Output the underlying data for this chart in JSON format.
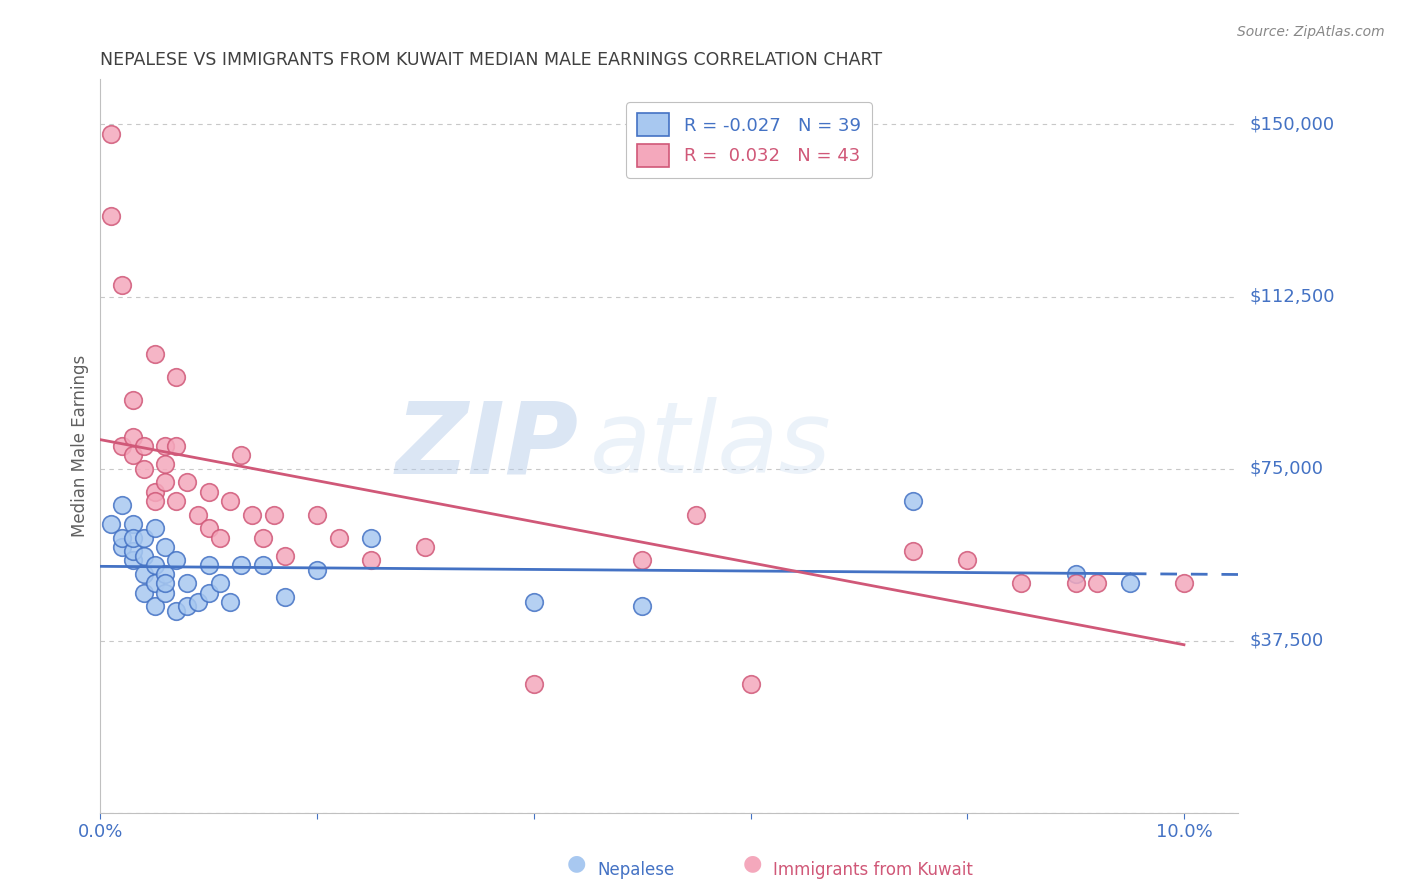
{
  "title": "NEPALESE VS IMMIGRANTS FROM KUWAIT MEDIAN MALE EARNINGS CORRELATION CHART",
  "source": "Source: ZipAtlas.com",
  "ylabel": "Median Male Earnings",
  "xlim": [
    0.0,
    0.105
  ],
  "ylim": [
    0,
    160000
  ],
  "yticks": [
    0,
    37500,
    75000,
    112500,
    150000
  ],
  "ytick_labels": [
    "",
    "$37,500",
    "$75,000",
    "$112,500",
    "$150,000"
  ],
  "xticks": [
    0.0,
    0.02,
    0.04,
    0.06,
    0.08,
    0.1
  ],
  "xtick_labels": [
    "0.0%",
    "",
    "",
    "",
    "",
    "10.0%"
  ],
  "legend_r1": "R = -0.027",
  "legend_n1": "N = 39",
  "legend_r2": "R =  0.032",
  "legend_n2": "N = 43",
  "series1_label": "Nepalese",
  "series2_label": "Immigrants from Kuwait",
  "series1_color": "#a8c8f0",
  "series2_color": "#f4a8bc",
  "trend1_color": "#4472c4",
  "trend2_color": "#d05878",
  "title_color": "#404040",
  "axis_label_color": "#4472c4",
  "background_color": "#ffffff",
  "watermark_zip": "ZIP",
  "watermark_atlas": "atlas",
  "nepalese_x": [
    0.001,
    0.002,
    0.002,
    0.002,
    0.003,
    0.003,
    0.003,
    0.003,
    0.004,
    0.004,
    0.004,
    0.004,
    0.005,
    0.005,
    0.005,
    0.005,
    0.006,
    0.006,
    0.006,
    0.006,
    0.007,
    0.007,
    0.008,
    0.008,
    0.009,
    0.01,
    0.01,
    0.011,
    0.012,
    0.013,
    0.015,
    0.017,
    0.02,
    0.025,
    0.04,
    0.05,
    0.075,
    0.09,
    0.095
  ],
  "nepalese_y": [
    63000,
    67000,
    58000,
    60000,
    55000,
    63000,
    57000,
    60000,
    52000,
    48000,
    56000,
    60000,
    50000,
    45000,
    54000,
    62000,
    48000,
    52000,
    50000,
    58000,
    55000,
    44000,
    45000,
    50000,
    46000,
    48000,
    54000,
    50000,
    46000,
    54000,
    54000,
    47000,
    53000,
    60000,
    46000,
    45000,
    68000,
    52000,
    50000
  ],
  "kuwait_x": [
    0.001,
    0.001,
    0.002,
    0.002,
    0.003,
    0.003,
    0.003,
    0.004,
    0.004,
    0.005,
    0.005,
    0.005,
    0.006,
    0.006,
    0.006,
    0.007,
    0.007,
    0.007,
    0.008,
    0.009,
    0.01,
    0.01,
    0.011,
    0.012,
    0.013,
    0.014,
    0.015,
    0.016,
    0.017,
    0.02,
    0.022,
    0.025,
    0.03,
    0.04,
    0.05,
    0.055,
    0.06,
    0.075,
    0.08,
    0.085,
    0.09,
    0.092,
    0.1
  ],
  "kuwait_y": [
    148000,
    130000,
    80000,
    115000,
    90000,
    78000,
    82000,
    80000,
    75000,
    100000,
    70000,
    68000,
    80000,
    76000,
    72000,
    95000,
    68000,
    80000,
    72000,
    65000,
    62000,
    70000,
    60000,
    68000,
    78000,
    65000,
    60000,
    65000,
    56000,
    65000,
    60000,
    55000,
    58000,
    28000,
    55000,
    65000,
    28000,
    57000,
    55000,
    50000,
    50000,
    50000,
    50000
  ],
  "trend1_x_solid_end": 0.095,
  "trend1_x_dash_end": 0.105,
  "trend2_x_end": 0.1
}
